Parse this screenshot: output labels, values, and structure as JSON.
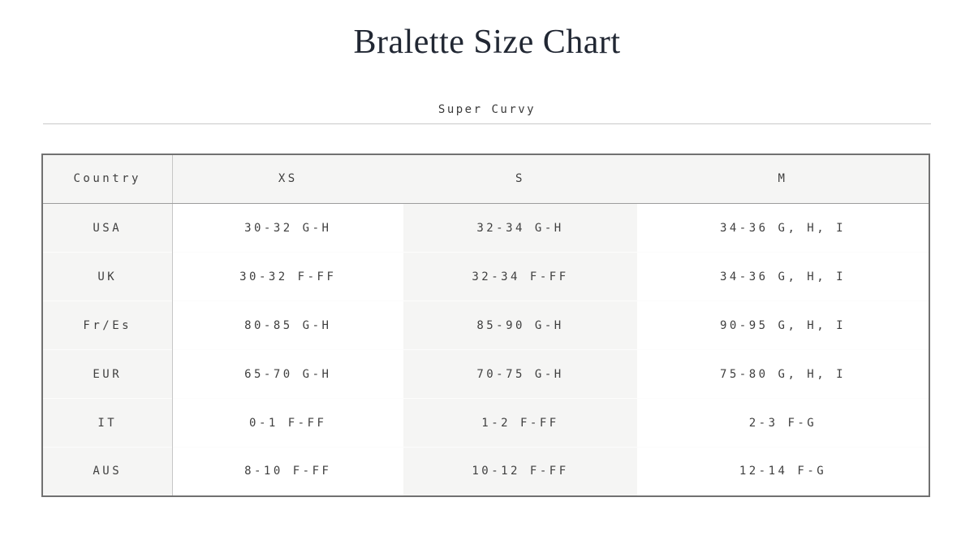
{
  "page": {
    "title": "Bralette Size Chart",
    "active_tab": "Super Curvy"
  },
  "size_table": {
    "columns": [
      "Country",
      "XS",
      "S",
      "M"
    ],
    "row_keys": [
      "country",
      "xs",
      "s",
      "m"
    ],
    "rows": [
      {
        "country": "USA",
        "xs": "30-32 G-H",
        "s": "32-34 G-H",
        "m": "34-36 G, H, I"
      },
      {
        "country": "UK",
        "xs": "30-32 F-FF",
        "s": "32-34 F-FF",
        "m": "34-36 G, H, I"
      },
      {
        "country": "Fr/Es",
        "xs": "80-85 G-H",
        "s": "85-90 G-H",
        "m": "90-95 G, H, I"
      },
      {
        "country": "EUR",
        "xs": "65-70 G-H",
        "s": "70-75 G-H",
        "m": "75-80 G, H, I"
      },
      {
        "country": "IT",
        "xs": "0-1 F-FF",
        "s": "1-2 F-FF",
        "m": "2-3 F-G"
      },
      {
        "country": "AUS",
        "xs": "8-10 F-FF",
        "s": "10-12 F-FF",
        "m": "12-14 F-G"
      }
    ],
    "highlighted_columns": [
      "Country",
      "S"
    ]
  },
  "colors": {
    "title_text": "#212733",
    "body_text": "#3f3f3f",
    "band_gray": "#f5f5f4",
    "table_border": "#717171",
    "header_divider": "#9d9d9d",
    "column_divider": "#c6c6c6",
    "rule_line": "#c9c9c9"
  }
}
